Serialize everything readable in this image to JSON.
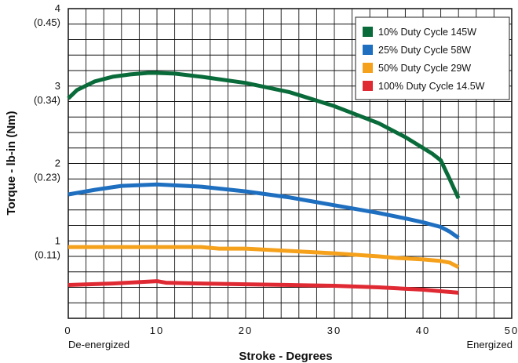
{
  "chart_data": {
    "type": "line",
    "title": "",
    "xlabel": "Stroke - Degrees",
    "ylabel": "Torque - lb-in (Nm)",
    "xlim": [
      0,
      50
    ],
    "ylim": [
      0,
      4
    ],
    "grid": true,
    "legend_position": "top-right",
    "x_ticks": [
      "0",
      "10",
      "20",
      "30",
      "40",
      "50"
    ],
    "y_ticks": [
      {
        "value": 1,
        "label": "1",
        "sublabel": "(0.11)"
      },
      {
        "value": 2,
        "label": "2",
        "sublabel": "(0.23)"
      },
      {
        "value": 3,
        "label": "3",
        "sublabel": "(0.34)"
      },
      {
        "value": 4,
        "label": "4",
        "sublabel": "(0.45)"
      }
    ],
    "x_end_labels": {
      "left": "De-energized",
      "right": "Energized"
    },
    "series": [
      {
        "name": "10% Duty Cycle 145W",
        "color": "#0a6b3a",
        "x": [
          0,
          1,
          3,
          5,
          7,
          9,
          10,
          12,
          15,
          20,
          25,
          30,
          35,
          38,
          40,
          41,
          42,
          43,
          44
        ],
        "y": [
          2.84,
          2.95,
          3.06,
          3.12,
          3.15,
          3.17,
          3.17,
          3.16,
          3.12,
          3.04,
          2.92,
          2.74,
          2.52,
          2.34,
          2.2,
          2.13,
          2.04,
          1.8,
          1.55
        ]
      },
      {
        "name": "25% Duty Cycle 58W",
        "color": "#1f6fc0",
        "x": [
          0,
          3,
          6,
          10,
          15,
          20,
          25,
          30,
          35,
          38,
          40,
          42,
          43,
          44
        ],
        "y": [
          1.6,
          1.66,
          1.71,
          1.73,
          1.7,
          1.64,
          1.56,
          1.46,
          1.36,
          1.29,
          1.24,
          1.18,
          1.12,
          1.04
        ]
      },
      {
        "name": "50% Duty Cycle 29W",
        "color": "#f5a11c",
        "x": [
          0,
          5,
          10,
          15,
          17,
          20,
          25,
          30,
          35,
          37,
          40,
          42,
          43,
          44
        ],
        "y": [
          0.92,
          0.92,
          0.92,
          0.92,
          0.9,
          0.9,
          0.87,
          0.84,
          0.8,
          0.78,
          0.76,
          0.74,
          0.72,
          0.66
        ]
      },
      {
        "name": "100% Duty Cycle 14.5W",
        "color": "#e02a33",
        "x": [
          0,
          5,
          10,
          11,
          15,
          20,
          25,
          30,
          35,
          40,
          44
        ],
        "y": [
          0.43,
          0.45,
          0.48,
          0.46,
          0.45,
          0.44,
          0.43,
          0.42,
          0.4,
          0.37,
          0.33
        ]
      }
    ]
  }
}
